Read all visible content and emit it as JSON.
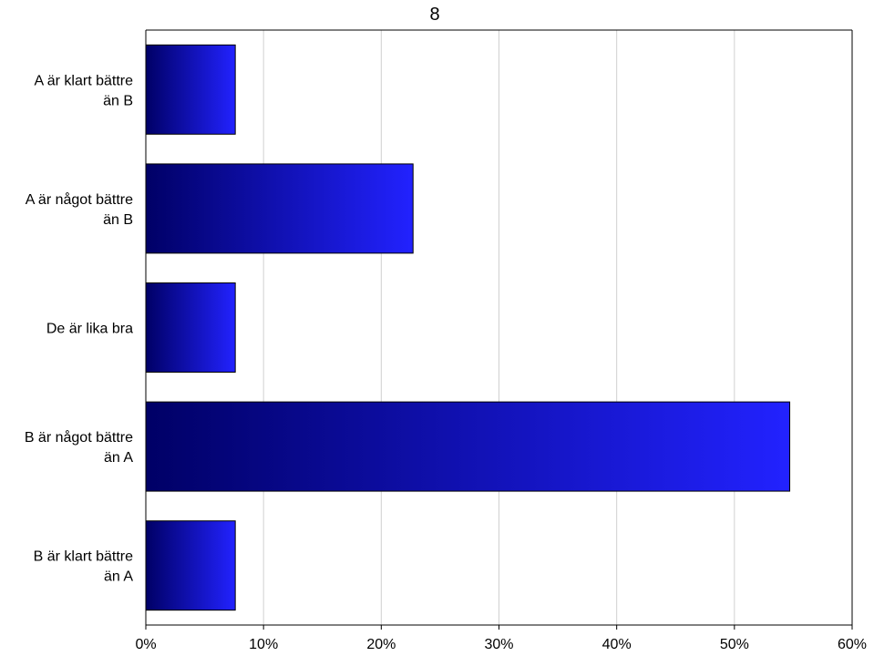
{
  "chart_data": {
    "type": "bar",
    "orientation": "horizontal",
    "title": "8",
    "categories": [
      [
        "A är klart bättre",
        "än B"
      ],
      [
        "A är något bättre",
        "än B"
      ],
      [
        "De är lika bra"
      ],
      [
        "B är något bättre",
        "än A"
      ],
      [
        "B är klart bättre",
        "än A"
      ]
    ],
    "values": [
      7.6,
      22.7,
      7.6,
      54.7,
      7.6
    ],
    "xlim": [
      0,
      60
    ],
    "xticks": [
      0,
      10,
      20,
      30,
      40,
      50,
      60
    ],
    "tick_labels": [
      "0%",
      "10%",
      "20%",
      "30%",
      "40%",
      "50%",
      "60%"
    ],
    "xlabel": "",
    "ylabel": "",
    "grid": true,
    "legend": "none",
    "bar_gradient": [
      "#000066",
      "#2222ff"
    ],
    "bar_border": "#000000",
    "grid_color": "#d0d0d0"
  }
}
